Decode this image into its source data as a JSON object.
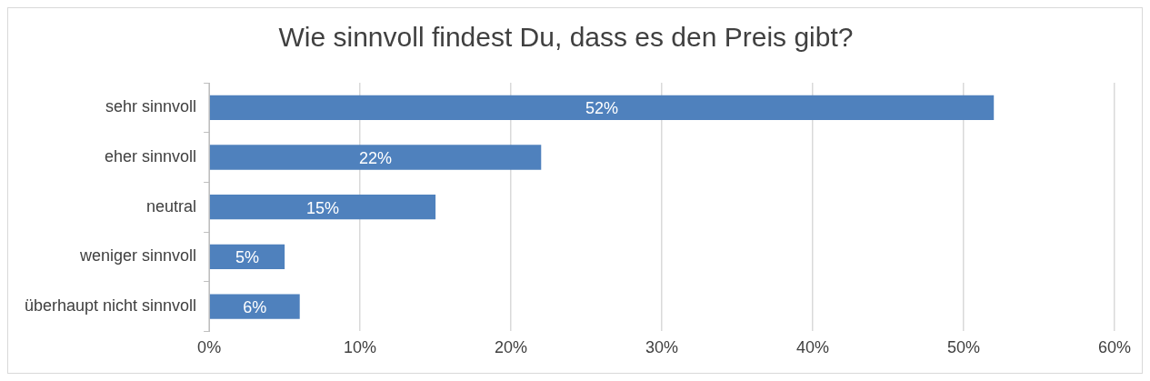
{
  "chart_data": {
    "type": "bar",
    "orientation": "horizontal",
    "title": "Wie sinnvoll findest Du, dass es den Preis gibt?",
    "categories": [
      "sehr sinnvoll",
      "eher sinnvoll",
      "neutral",
      "weniger sinnvoll",
      "überhaupt nicht sinnvoll"
    ],
    "values": [
      52,
      22,
      15,
      5,
      6
    ],
    "value_labels": [
      "52%",
      "22%",
      "15%",
      "5%",
      "6%"
    ],
    "color": "#4f81bd",
    "xlim": [
      0,
      60
    ],
    "xticks": [
      {
        "value": 0,
        "label": "0%"
      },
      {
        "value": 10,
        "label": "10%"
      },
      {
        "value": 20,
        "label": "20%"
      },
      {
        "value": 30,
        "label": "30%"
      },
      {
        "value": 40,
        "label": "40%"
      },
      {
        "value": 50,
        "label": "50%"
      },
      {
        "value": 60,
        "label": "60%"
      }
    ],
    "grid": "x",
    "legend": false
  }
}
